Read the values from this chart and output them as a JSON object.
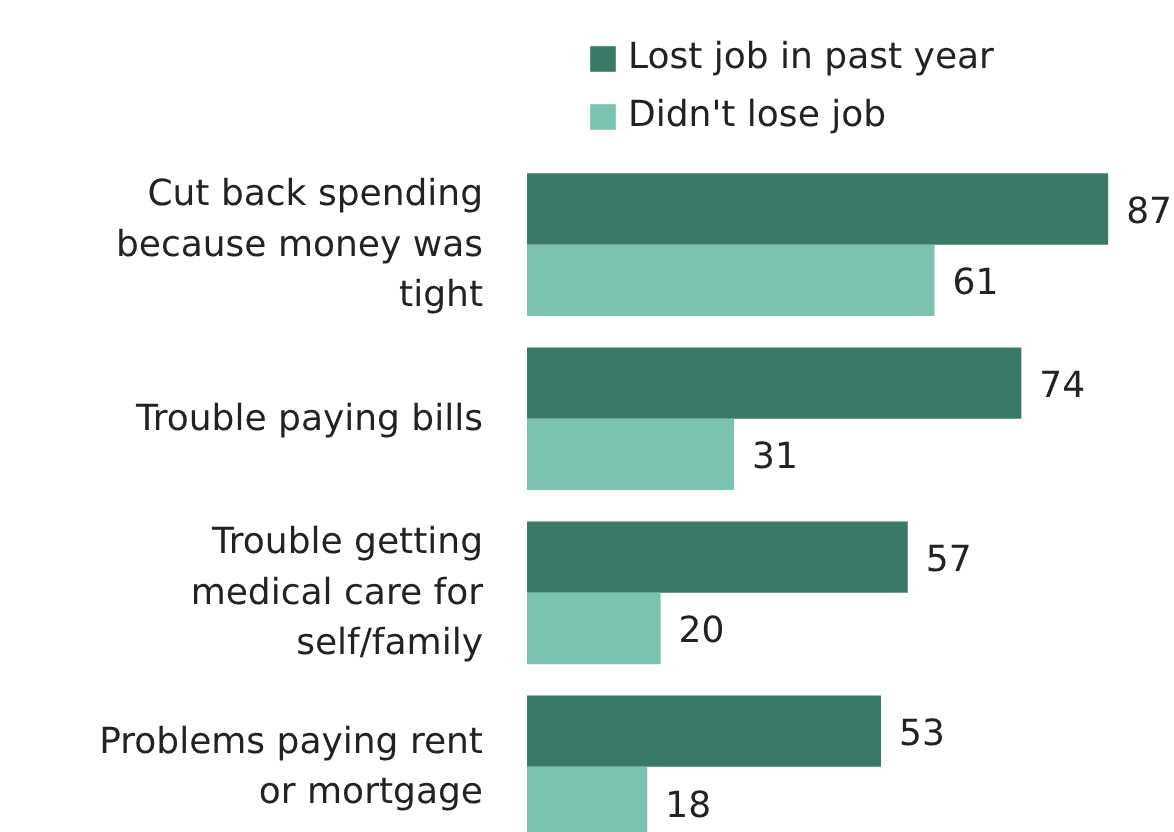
{
  "chart_data": {
    "type": "bar",
    "orientation": "horizontal",
    "categories": [
      "Cut back spending because money was tight",
      "Trouble paying bills",
      "Trouble getting medical care for self/family",
      "Problems paying rent or mortgage"
    ],
    "series": [
      {
        "name": "Lost job in past year",
        "color": "#3a7868",
        "values": [
          87,
          74,
          57,
          53
        ]
      },
      {
        "name": "Didn't lose job",
        "color": "#7bc2b0",
        "values": [
          61,
          31,
          20,
          18
        ]
      }
    ],
    "data_labels": true,
    "legend": "top",
    "grid": false
  }
}
